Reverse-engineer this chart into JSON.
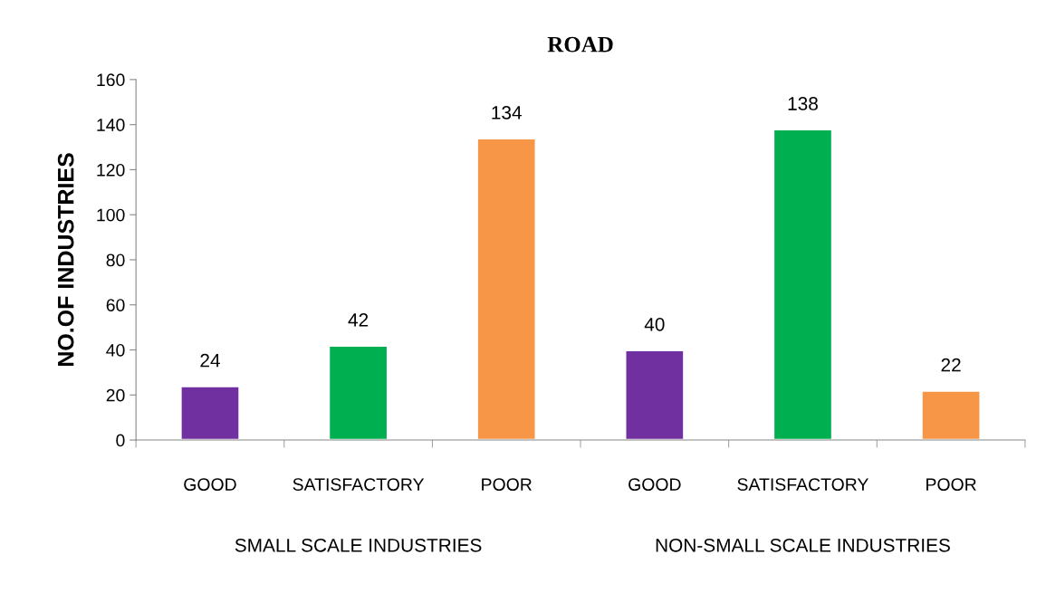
{
  "chart_data": {
    "type": "bar",
    "title": "ROAD",
    "ylabel": "NO.OF INDUSTRIES",
    "categories": [
      "GOOD",
      "SATISFACTORY",
      "POOR",
      "GOOD",
      "SATISFACTORY",
      "POOR"
    ],
    "values": [
      24,
      42,
      134,
      40,
      138,
      22
    ],
    "colors": [
      "#7030a0",
      "#00b050",
      "#f79646",
      "#7030a0",
      "#00b050",
      "#f79646"
    ],
    "annotations": [
      "SMALL SCALE INDUSTRIES",
      "NON-SMALL SCALE INDUSTRIES"
    ],
    "ylim": [
      0,
      160
    ],
    "yticks": [
      0,
      20,
      40,
      60,
      80,
      100,
      120,
      140,
      160
    ],
    "data_labels": true,
    "grid": false,
    "legend": false
  }
}
